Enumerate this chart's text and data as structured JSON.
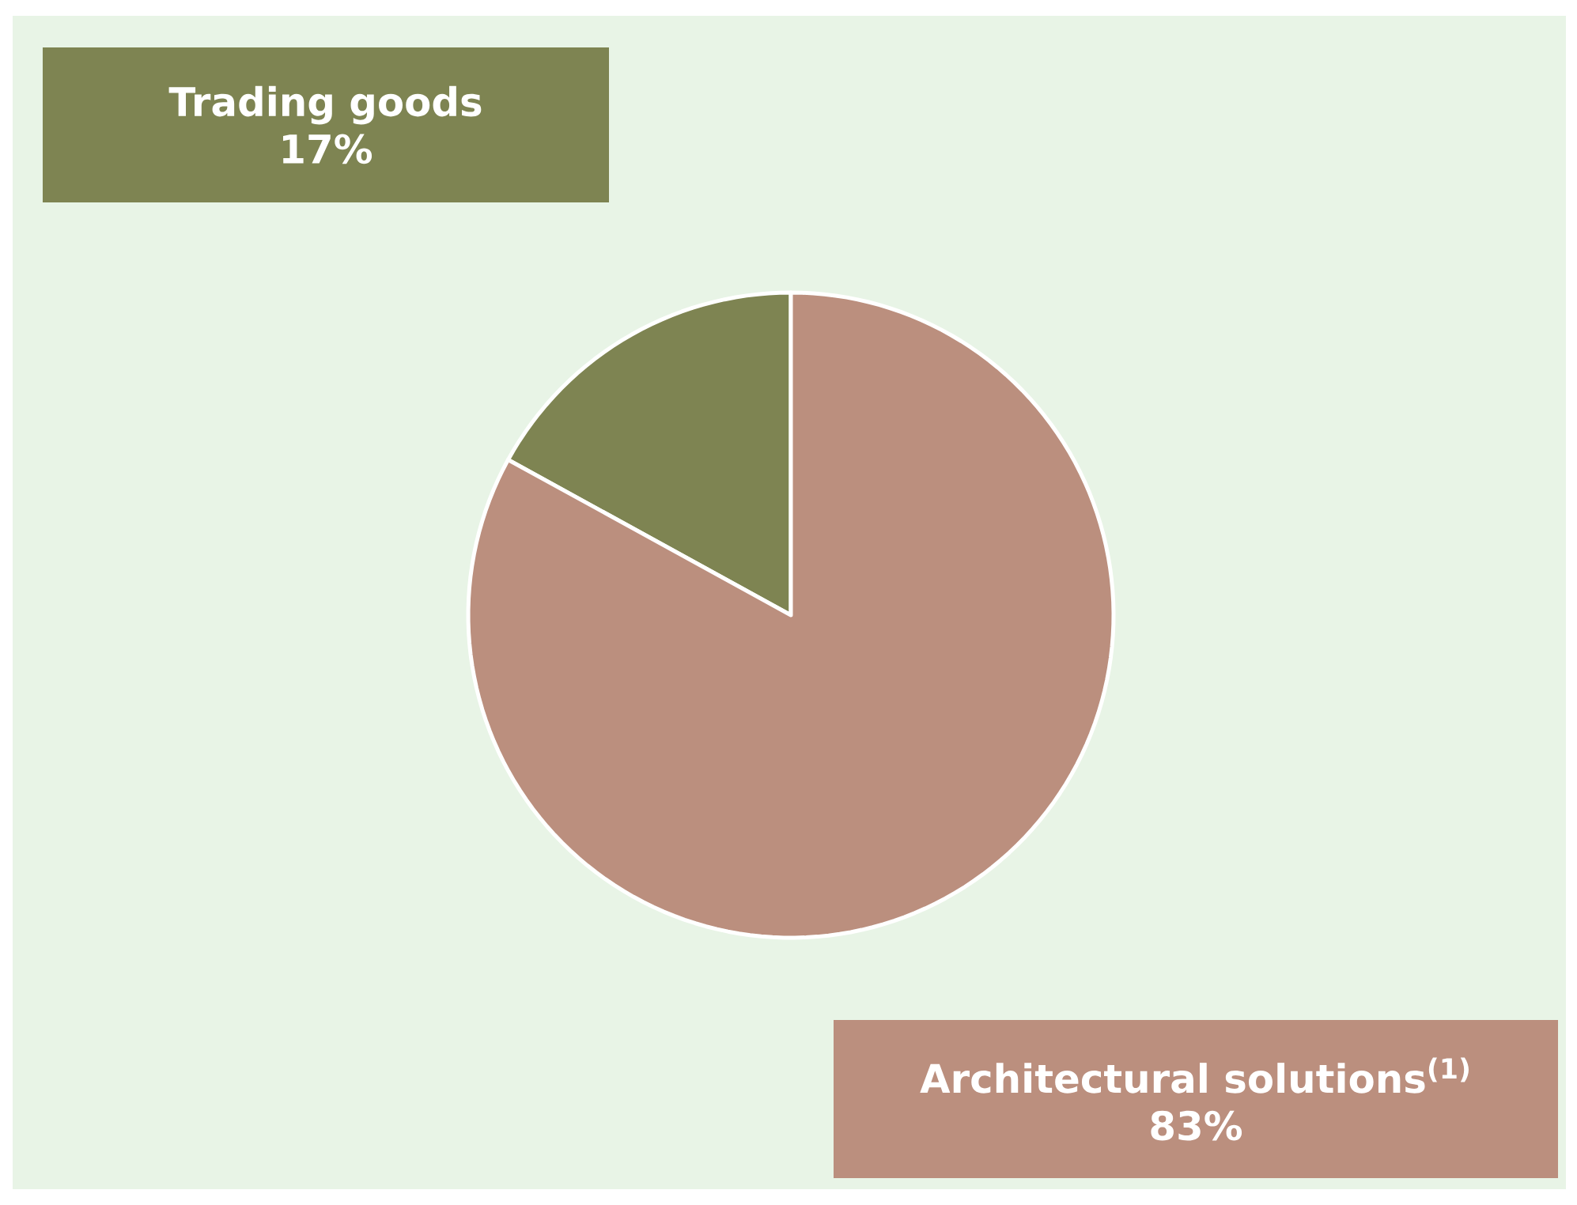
{
  "chart_data": {
    "type": "pie",
    "categories": [
      "Trading goods",
      "Architectural solutions$^{(1)}$"
    ],
    "values": [
      17,
      83
    ],
    "colors": [
      "#7e8452",
      "#bb8f7e"
    ],
    "value_labels": [
      "17%",
      "83%"
    ]
  }
}
